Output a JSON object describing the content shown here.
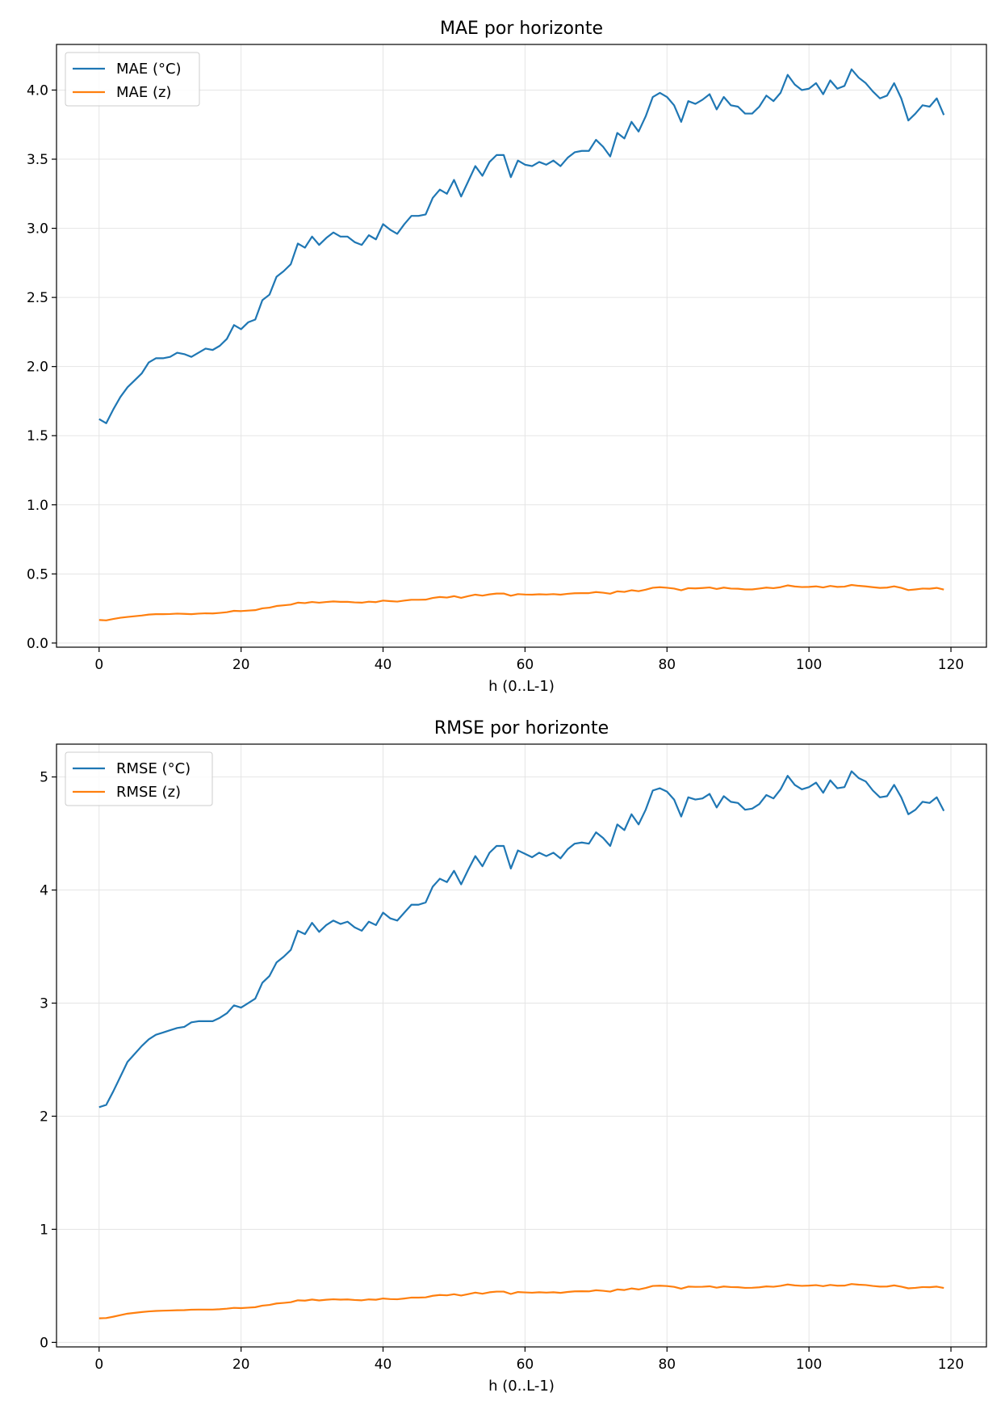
{
  "colors": {
    "celsius": "#1f77b4",
    "z": "#ff7f0e"
  },
  "chart_data": [
    {
      "type": "line",
      "title": "MAE por horizonte",
      "xlabel": "h (0..L-1)",
      "ylabel": "",
      "xlim": [
        -6,
        125
      ],
      "ylim": [
        -0.03,
        4.33
      ],
      "xticks": [
        0,
        20,
        40,
        60,
        80,
        100,
        120
      ],
      "yticks": [
        0.0,
        0.5,
        1.0,
        1.5,
        2.0,
        2.5,
        3.0,
        3.5,
        4.0
      ],
      "yticklabels": [
        "0.0",
        "0.5",
        "1.0",
        "1.5",
        "2.0",
        "2.5",
        "3.0",
        "3.5",
        "4.0"
      ],
      "grid": true,
      "legend": "top-left",
      "series": [
        {
          "name": "MAE (°C)",
          "color": "#1f77b4",
          "values": [
            1.62,
            1.59,
            1.69,
            1.78,
            1.85,
            1.9,
            1.95,
            2.03,
            2.06,
            2.06,
            2.07,
            2.1,
            2.09,
            2.07,
            2.1,
            2.13,
            2.12,
            2.15,
            2.2,
            2.3,
            2.27,
            2.32,
            2.34,
            2.48,
            2.52,
            2.65,
            2.69,
            2.74,
            2.89,
            2.86,
            2.94,
            2.88,
            2.93,
            2.97,
            2.94,
            2.94,
            2.9,
            2.88,
            2.95,
            2.92,
            3.03,
            2.99,
            2.96,
            3.03,
            3.09,
            3.09,
            3.1,
            3.22,
            3.28,
            3.25,
            3.35,
            3.23,
            3.34,
            3.45,
            3.38,
            3.48,
            3.53,
            3.53,
            3.37,
            3.49,
            3.46,
            3.45,
            3.48,
            3.46,
            3.49,
            3.45,
            3.51,
            3.55,
            3.56,
            3.56,
            3.64,
            3.59,
            3.52,
            3.69,
            3.65,
            3.77,
            3.7,
            3.81,
            3.95,
            3.98,
            3.95,
            3.89,
            3.77,
            3.92,
            3.9,
            3.93,
            3.97,
            3.86,
            3.95,
            3.89,
            3.88,
            3.83,
            3.83,
            3.88,
            3.96,
            3.92,
            3.98,
            4.11,
            4.04,
            4.0,
            4.01,
            4.05,
            3.97,
            4.07,
            4.01,
            4.03,
            4.15,
            4.09,
            4.05,
            3.99,
            3.94,
            3.96,
            4.05,
            3.94,
            3.78,
            3.83,
            3.89,
            3.88,
            3.94,
            3.82
          ]
        },
        {
          "name": "MAE (z)",
          "color": "#ff7f0e",
          "values": [
            0.167,
            0.164,
            0.174,
            0.183,
            0.189,
            0.194,
            0.199,
            0.206,
            0.209,
            0.209,
            0.21,
            0.213,
            0.211,
            0.209,
            0.213,
            0.215,
            0.214,
            0.218,
            0.223,
            0.233,
            0.231,
            0.235,
            0.238,
            0.251,
            0.256,
            0.268,
            0.273,
            0.278,
            0.292,
            0.289,
            0.297,
            0.292,
            0.297,
            0.301,
            0.298,
            0.298,
            0.294,
            0.292,
            0.299,
            0.296,
            0.307,
            0.303,
            0.3,
            0.307,
            0.313,
            0.313,
            0.314,
            0.326,
            0.333,
            0.329,
            0.339,
            0.327,
            0.339,
            0.35,
            0.343,
            0.352,
            0.358,
            0.358,
            0.342,
            0.354,
            0.351,
            0.35,
            0.353,
            0.351,
            0.354,
            0.35,
            0.356,
            0.36,
            0.361,
            0.361,
            0.369,
            0.364,
            0.357,
            0.374,
            0.37,
            0.382,
            0.375,
            0.386,
            0.4,
            0.404,
            0.4,
            0.394,
            0.382,
            0.397,
            0.395,
            0.398,
            0.402,
            0.391,
            0.401,
            0.394,
            0.393,
            0.388,
            0.388,
            0.394,
            0.401,
            0.397,
            0.404,
            0.417,
            0.409,
            0.405,
            0.406,
            0.41,
            0.402,
            0.413,
            0.406,
            0.408,
            0.42,
            0.414,
            0.41,
            0.404,
            0.399,
            0.401,
            0.41,
            0.399,
            0.383,
            0.388,
            0.394,
            0.393,
            0.399,
            0.387
          ]
        }
      ]
    },
    {
      "type": "line",
      "title": "RMSE por horizonte",
      "xlabel": "h (0..L-1)",
      "ylabel": "",
      "xlim": [
        -6,
        125
      ],
      "ylim": [
        -0.04,
        5.29
      ],
      "xticks": [
        0,
        20,
        40,
        60,
        80,
        100,
        120
      ],
      "yticks": [
        0,
        1,
        2,
        3,
        4,
        5
      ],
      "yticklabels": [
        "0",
        "1",
        "2",
        "3",
        "4",
        "5"
      ],
      "grid": true,
      "legend": "top-left",
      "series": [
        {
          "name": "RMSE (°C)",
          "color": "#1f77b4",
          "values": [
            2.08,
            2.1,
            2.22,
            2.35,
            2.48,
            2.55,
            2.62,
            2.68,
            2.72,
            2.74,
            2.76,
            2.78,
            2.79,
            2.83,
            2.84,
            2.84,
            2.84,
            2.87,
            2.91,
            2.98,
            2.96,
            3.0,
            3.04,
            3.18,
            3.24,
            3.36,
            3.41,
            3.47,
            3.64,
            3.61,
            3.71,
            3.63,
            3.69,
            3.73,
            3.7,
            3.72,
            3.67,
            3.64,
            3.72,
            3.69,
            3.8,
            3.75,
            3.73,
            3.8,
            3.87,
            3.87,
            3.89,
            4.03,
            4.1,
            4.07,
            4.17,
            4.05,
            4.18,
            4.3,
            4.21,
            4.33,
            4.39,
            4.39,
            4.19,
            4.35,
            4.32,
            4.29,
            4.33,
            4.3,
            4.33,
            4.28,
            4.36,
            4.41,
            4.42,
            4.41,
            4.51,
            4.46,
            4.39,
            4.58,
            4.53,
            4.67,
            4.58,
            4.71,
            4.88,
            4.9,
            4.87,
            4.8,
            4.65,
            4.82,
            4.8,
            4.81,
            4.85,
            4.73,
            4.83,
            4.78,
            4.77,
            4.71,
            4.72,
            4.76,
            4.84,
            4.81,
            4.89,
            5.01,
            4.93,
            4.89,
            4.91,
            4.95,
            4.86,
            4.97,
            4.9,
            4.91,
            5.05,
            4.99,
            4.96,
            4.88,
            4.82,
            4.83,
            4.93,
            4.82,
            4.67,
            4.71,
            4.78,
            4.77,
            4.82,
            4.7
          ]
        },
        {
          "name": "RMSE (z)",
          "color": "#ff7f0e",
          "values": [
            0.213,
            0.215,
            0.227,
            0.241,
            0.254,
            0.261,
            0.268,
            0.274,
            0.278,
            0.28,
            0.282,
            0.284,
            0.285,
            0.289,
            0.29,
            0.29,
            0.29,
            0.293,
            0.298,
            0.305,
            0.303,
            0.307,
            0.311,
            0.325,
            0.331,
            0.344,
            0.349,
            0.355,
            0.372,
            0.369,
            0.379,
            0.371,
            0.377,
            0.381,
            0.378,
            0.38,
            0.375,
            0.372,
            0.38,
            0.377,
            0.388,
            0.383,
            0.381,
            0.388,
            0.396,
            0.396,
            0.398,
            0.412,
            0.419,
            0.416,
            0.426,
            0.414,
            0.427,
            0.44,
            0.43,
            0.443,
            0.449,
            0.449,
            0.428,
            0.445,
            0.442,
            0.439,
            0.443,
            0.44,
            0.443,
            0.438,
            0.446,
            0.451,
            0.452,
            0.451,
            0.461,
            0.456,
            0.449,
            0.468,
            0.463,
            0.477,
            0.468,
            0.481,
            0.499,
            0.501,
            0.498,
            0.491,
            0.475,
            0.493,
            0.491,
            0.492,
            0.496,
            0.484,
            0.494,
            0.489,
            0.488,
            0.482,
            0.483,
            0.487,
            0.495,
            0.492,
            0.5,
            0.512,
            0.504,
            0.5,
            0.502,
            0.506,
            0.497,
            0.508,
            0.501,
            0.502,
            0.516,
            0.51,
            0.507,
            0.499,
            0.493,
            0.494,
            0.504,
            0.493,
            0.478,
            0.482,
            0.489,
            0.488,
            0.493,
            0.481
          ]
        }
      ]
    }
  ]
}
